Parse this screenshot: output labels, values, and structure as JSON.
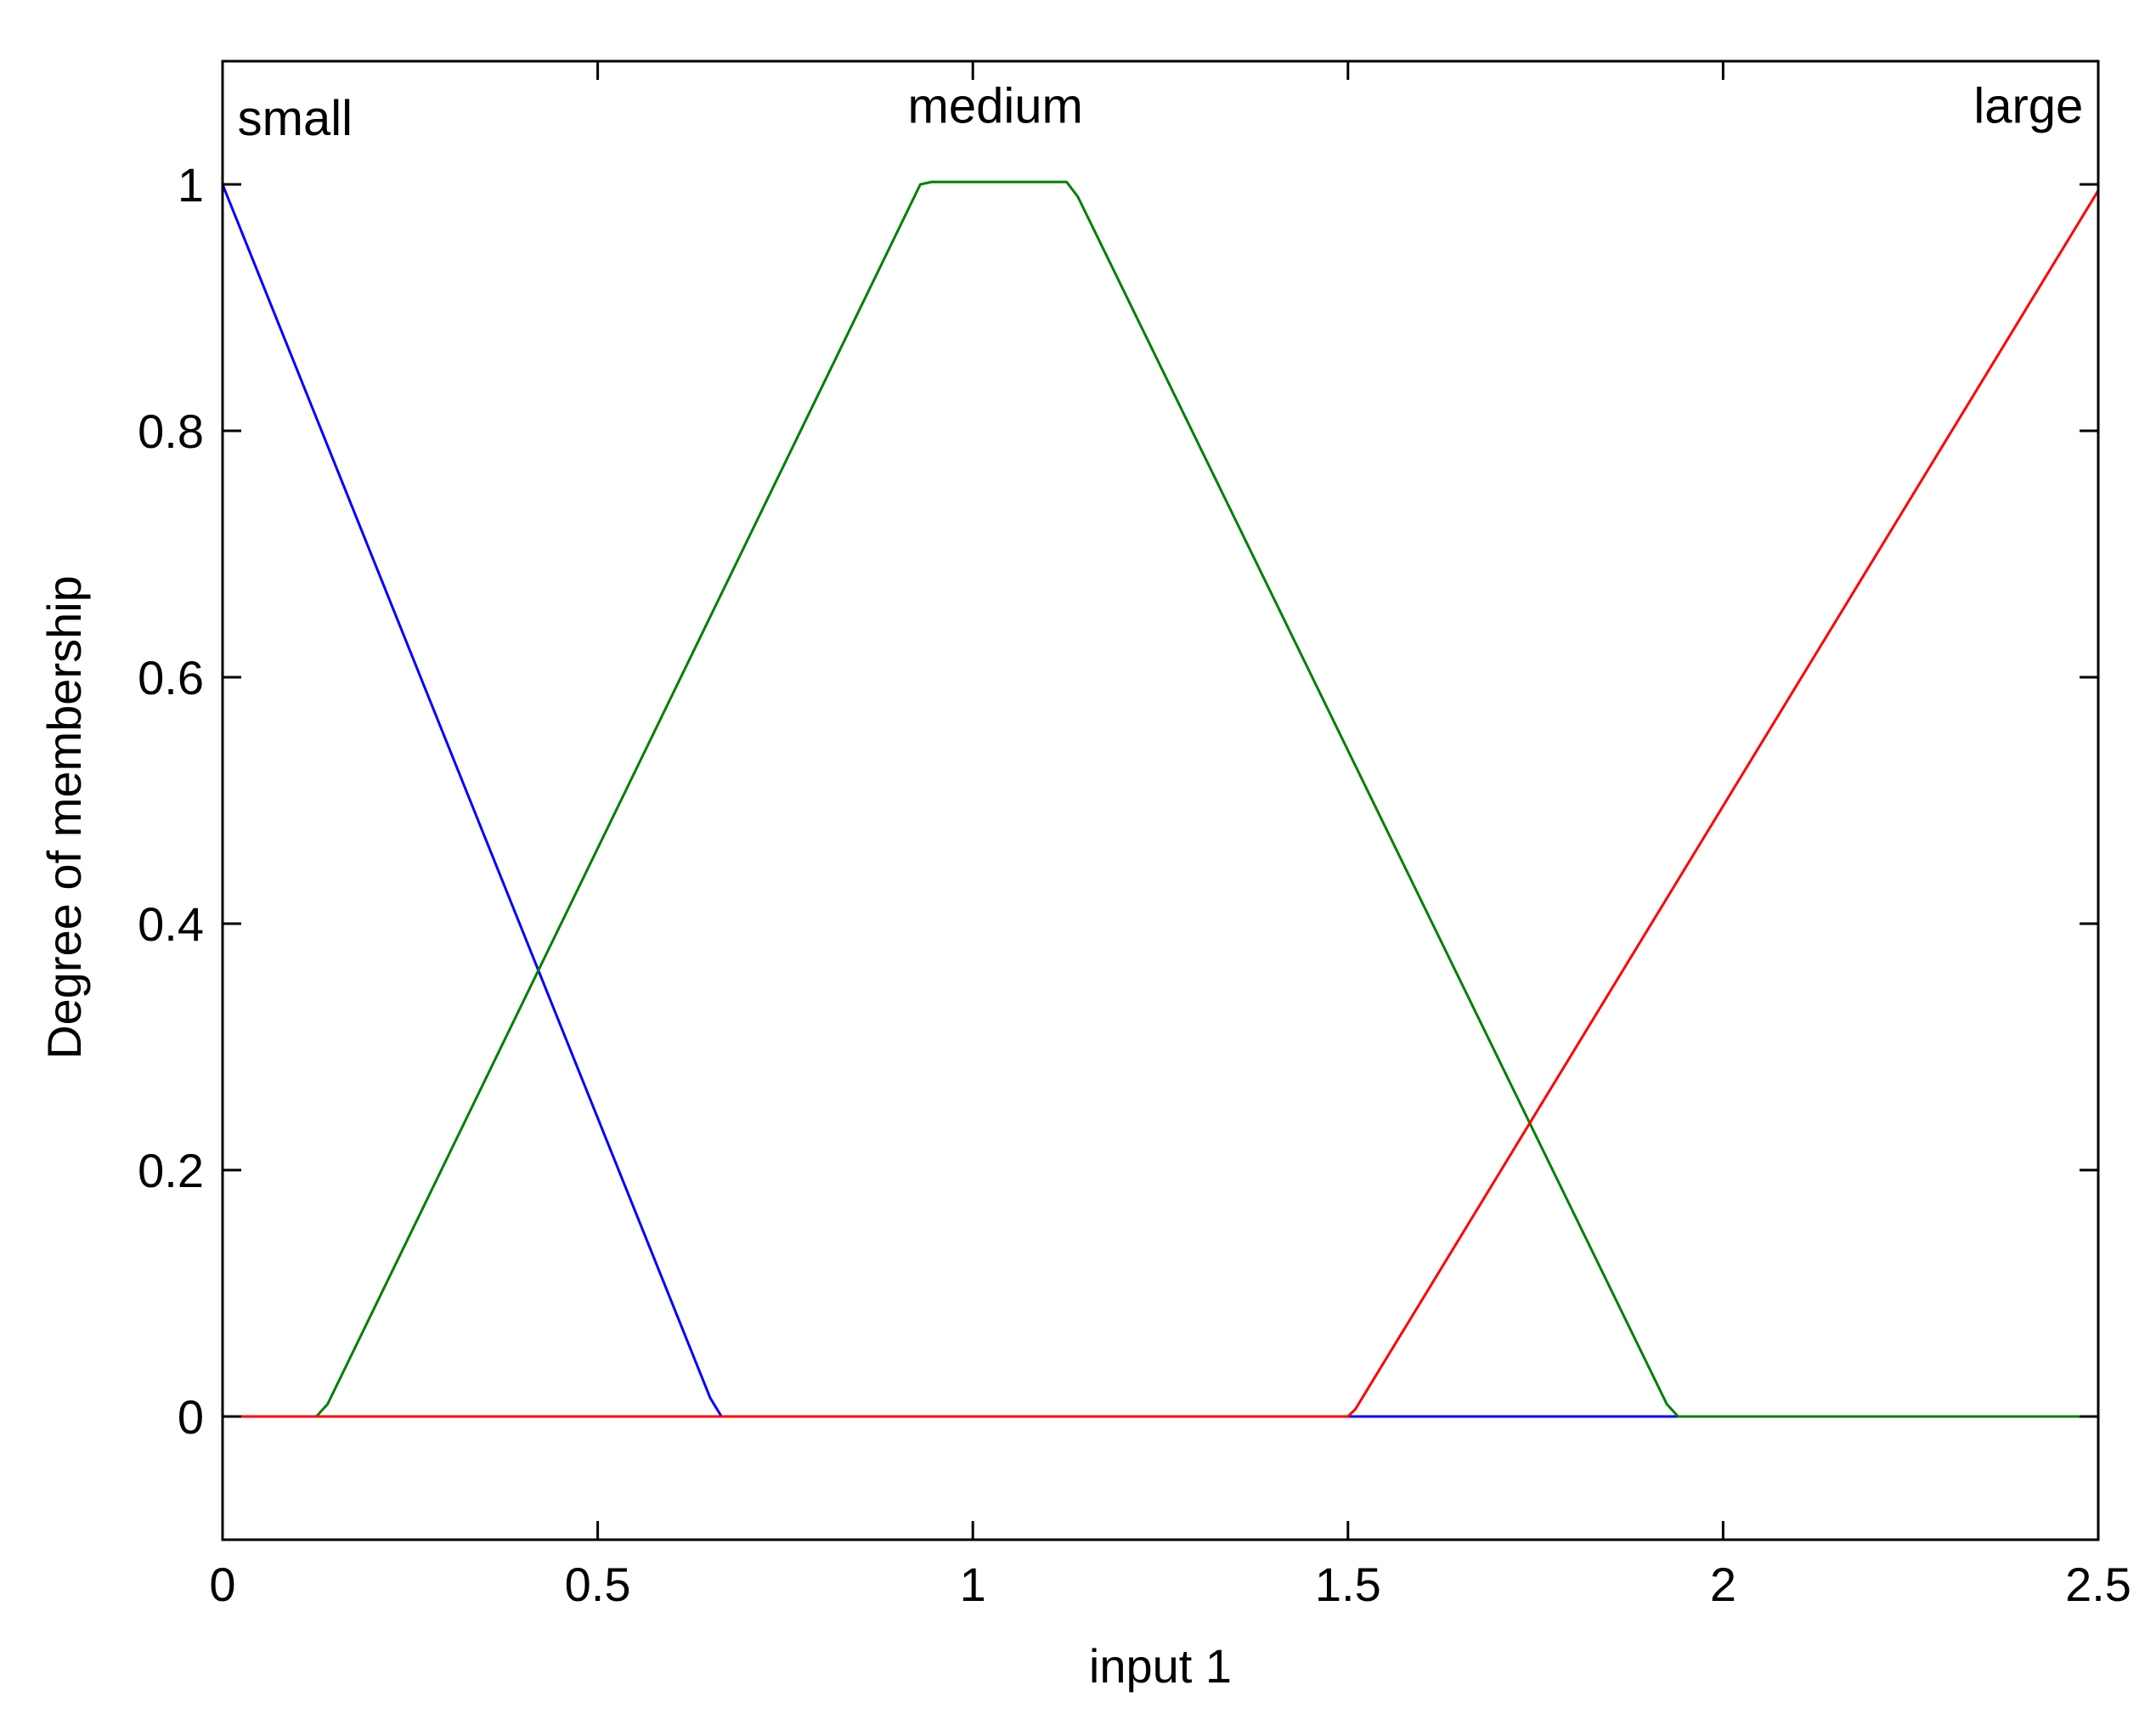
{
  "chart_data": {
    "type": "line",
    "title": "",
    "xlabel": "input 1",
    "ylabel": "Degree of membership",
    "xlim": [
      0,
      2.5
    ],
    "ylim": [
      -0.1,
      1.1
    ],
    "xticks": [
      0,
      0.5,
      1,
      1.5,
      2,
      2.5
    ],
    "xtick_labels": [
      "0",
      "0.5",
      "1",
      "1.5",
      "2",
      "2.5"
    ],
    "yticks": [
      0,
      0.2,
      0.4,
      0.6,
      0.8,
      1
    ],
    "ytick_labels": [
      "0",
      "0.2",
      "0.4",
      "0.6",
      "0.8",
      "1"
    ],
    "grid": false,
    "series": [
      {
        "name": "small",
        "color": "#0000ff",
        "x": [
          0,
          0.65,
          0.665,
          2.5
        ],
        "y": [
          1,
          0.015,
          0,
          0
        ],
        "label_x": 0.02,
        "label_y": 1.04
      },
      {
        "name": "medium",
        "color": "#008000",
        "x": [
          0,
          0.125,
          0.14,
          0.93,
          0.945,
          1.125,
          1.14,
          1.925,
          1.94,
          2.5
        ],
        "y": [
          0,
          0,
          0.01,
          1,
          1.002,
          1.002,
          0.99,
          0.01,
          0,
          0
        ],
        "label_x": 1.03,
        "label_y": 1.05
      },
      {
        "name": "large",
        "color": "#ff0000",
        "x": [
          0,
          1.5,
          1.51,
          2.5
        ],
        "y": [
          0,
          0,
          0.006,
          0.995
        ],
        "label_x": 2.48,
        "label_y": 1.05
      }
    ]
  }
}
